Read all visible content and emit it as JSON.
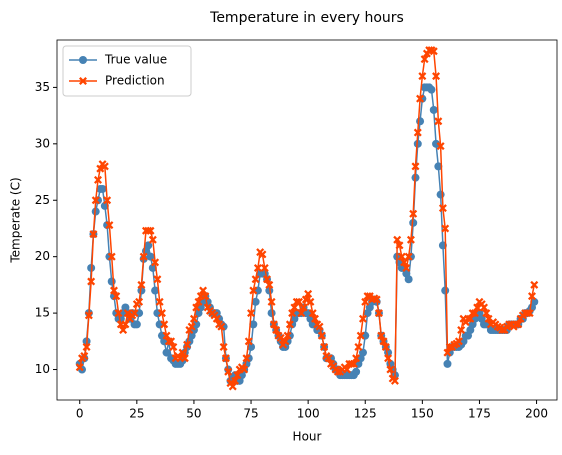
{
  "chart_data": {
    "type": "line",
    "title": "Temperature in every hours",
    "x_label": "Hour",
    "y_label": "Temperate (C)",
    "x": [
      0,
      1,
      2,
      3,
      4,
      5,
      6,
      7,
      8,
      9,
      10,
      11,
      12,
      13,
      14,
      15,
      16,
      17,
      18,
      19,
      20,
      21,
      22,
      23,
      24,
      25,
      26,
      27,
      28,
      29,
      30,
      31,
      32,
      33,
      34,
      35,
      36,
      37,
      38,
      39,
      40,
      41,
      42,
      43,
      44,
      45,
      46,
      47,
      48,
      49,
      50,
      51,
      52,
      53,
      54,
      55,
      56,
      57,
      58,
      59,
      60,
      61,
      62,
      63,
      64,
      65,
      66,
      67,
      68,
      69,
      70,
      71,
      72,
      73,
      74,
      75,
      76,
      77,
      78,
      79,
      80,
      81,
      82,
      83,
      84,
      85,
      86,
      87,
      88,
      89,
      90,
      91,
      92,
      93,
      94,
      95,
      96,
      97,
      98,
      99,
      100,
      101,
      102,
      103,
      104,
      105,
      106,
      107,
      108,
      109,
      110,
      111,
      112,
      113,
      114,
      115,
      116,
      117,
      118,
      119,
      120,
      121,
      122,
      123,
      124,
      125,
      126,
      127,
      128,
      129,
      130,
      131,
      132,
      133,
      134,
      135,
      136,
      137,
      138,
      139,
      140,
      141,
      142,
      143,
      144,
      145,
      146,
      147,
      148,
      149,
      150,
      151,
      152,
      153,
      154,
      155,
      156,
      157,
      158,
      159,
      160,
      161,
      162,
      163,
      164,
      165,
      166,
      167,
      168,
      169,
      170,
      171,
      172,
      173,
      174,
      175,
      176,
      177,
      178,
      179,
      180,
      181,
      182,
      183,
      184,
      185,
      186,
      187,
      188,
      189,
      190,
      191,
      192,
      193,
      194,
      195,
      196,
      197,
      198,
      199
    ],
    "series": [
      {
        "name": "True value",
        "color": "#4682b4",
        "marker": "circle",
        "values": [
          10.5,
          10,
          11,
          12.5,
          15,
          19,
          22,
          24,
          25,
          26,
          26,
          24.5,
          22.8,
          20,
          17.8,
          16.5,
          15,
          14.5,
          14.5,
          15,
          15.5,
          15,
          14.5,
          15,
          14,
          14,
          15,
          17,
          19.8,
          20.5,
          21,
          20,
          19,
          17,
          15,
          14,
          13,
          12.5,
          11.5,
          12.5,
          11,
          10.8,
          10.5,
          10.5,
          10.5,
          10.8,
          11.5,
          12,
          12.5,
          13,
          13.5,
          14,
          15,
          15.5,
          16,
          16.5,
          16,
          15.5,
          15,
          15,
          15,
          14.5,
          14,
          13.8,
          11,
          10,
          9,
          9.2,
          9.5,
          9,
          9,
          9.5,
          10,
          10.5,
          11,
          12,
          14,
          16,
          17,
          18.5,
          18.5,
          18.5,
          18,
          17,
          15,
          14,
          13.5,
          13,
          12.5,
          12,
          12,
          12.5,
          13,
          14,
          14.5,
          15,
          15,
          15,
          15.5,
          15,
          15,
          14.5,
          14,
          14,
          13.5,
          13.5,
          13,
          12,
          11,
          11,
          11,
          10.5,
          10,
          10,
          9.5,
          9.5,
          9.5,
          9.5,
          9.5,
          9.5,
          9.5,
          9.8,
          10.5,
          11,
          11.5,
          13,
          15,
          15.5,
          16,
          16.2,
          16,
          15,
          13,
          12.5,
          12,
          11.5,
          10.5,
          10,
          9.5,
          20,
          19.5,
          19,
          19,
          18.5,
          18,
          20,
          23,
          27,
          30,
          32,
          34,
          35,
          35,
          35,
          34.8,
          33,
          30,
          28,
          25.5,
          21,
          17,
          10.5,
          11.5,
          12,
          12,
          12,
          12,
          12.2,
          12.5,
          13,
          13,
          13.5,
          14,
          14.5,
          15,
          15,
          14.5,
          14,
          14,
          14,
          13.5,
          13.5,
          13.5,
          13.5,
          13.5,
          13.5,
          13.5,
          13.5,
          14,
          14,
          14,
          14,
          14,
          14.5,
          14.5,
          15,
          15,
          15.2,
          15.5,
          16
        ]
      },
      {
        "name": "Prediction",
        "color": "#ff4500",
        "marker": "x",
        "values": [
          10.2,
          11,
          11.2,
          12,
          14.8,
          17.8,
          22,
          25,
          26.8,
          27.8,
          28.2,
          28,
          25,
          22.8,
          20,
          17,
          16.5,
          15,
          14,
          13.5,
          14,
          15,
          14.5,
          14.8,
          15,
          15.8,
          16,
          17.5,
          20,
          22.3,
          22.3,
          22.3,
          21.5,
          19.5,
          18,
          16,
          15,
          14,
          13,
          12.5,
          12.5,
          12,
          11,
          11.2,
          11,
          11.5,
          11,
          12.2,
          13.5,
          13.8,
          14.5,
          15.5,
          16,
          16.5,
          17,
          16.5,
          15.5,
          15.2,
          15,
          14.8,
          14.5,
          14,
          13.8,
          12,
          11,
          9.8,
          8.8,
          8.5,
          9,
          9.5,
          10,
          10.2,
          10,
          11,
          12.5,
          15,
          17,
          18,
          19,
          20.4,
          20.2,
          19,
          18,
          17.5,
          16,
          14,
          13.5,
          13,
          12.8,
          12.2,
          12.5,
          13,
          14,
          15,
          15.5,
          16,
          16,
          15,
          15.5,
          16.2,
          16.7,
          16,
          15,
          14.5,
          14,
          13.8,
          13,
          12,
          11.2,
          11,
          10.5,
          10.3,
          10,
          9.8,
          9.8,
          10,
          10.2,
          10,
          10.5,
          10.5,
          10.5,
          11,
          12,
          13,
          14.5,
          16,
          16.5,
          16.5,
          16.2,
          16.3,
          16.2,
          15,
          13,
          12.5,
          12,
          11,
          10,
          9.2,
          9,
          21.5,
          21,
          20,
          19.5,
          19,
          20,
          21.5,
          23.8,
          28,
          31,
          34,
          36,
          37.5,
          38,
          38.3,
          38.3,
          38.2,
          36,
          32,
          29.8,
          24.3,
          22.5,
          11.5,
          12,
          12,
          12.2,
          12.3,
          12.5,
          13.5,
          14.5,
          14.2,
          14.5,
          14.5,
          15,
          15,
          15.5,
          16,
          15.8,
          15.5,
          15,
          14.5,
          14,
          14.2,
          14,
          13.8,
          13.7,
          13.5,
          13.5,
          13.8,
          14,
          14,
          13.8,
          14,
          14,
          14.5,
          14.8,
          15,
          15,
          15,
          16.5,
          17.5
        ]
      }
    ],
    "xlim": [
      -9.95,
      208.95
    ],
    "xticks": [
      0,
      25,
      50,
      75,
      100,
      125,
      150,
      175,
      200
    ],
    "ylim": [
      7.3,
      39.2
    ],
    "yticks": [
      10,
      15,
      20,
      25,
      30,
      35
    ],
    "grid": false,
    "legend": "upper left"
  }
}
